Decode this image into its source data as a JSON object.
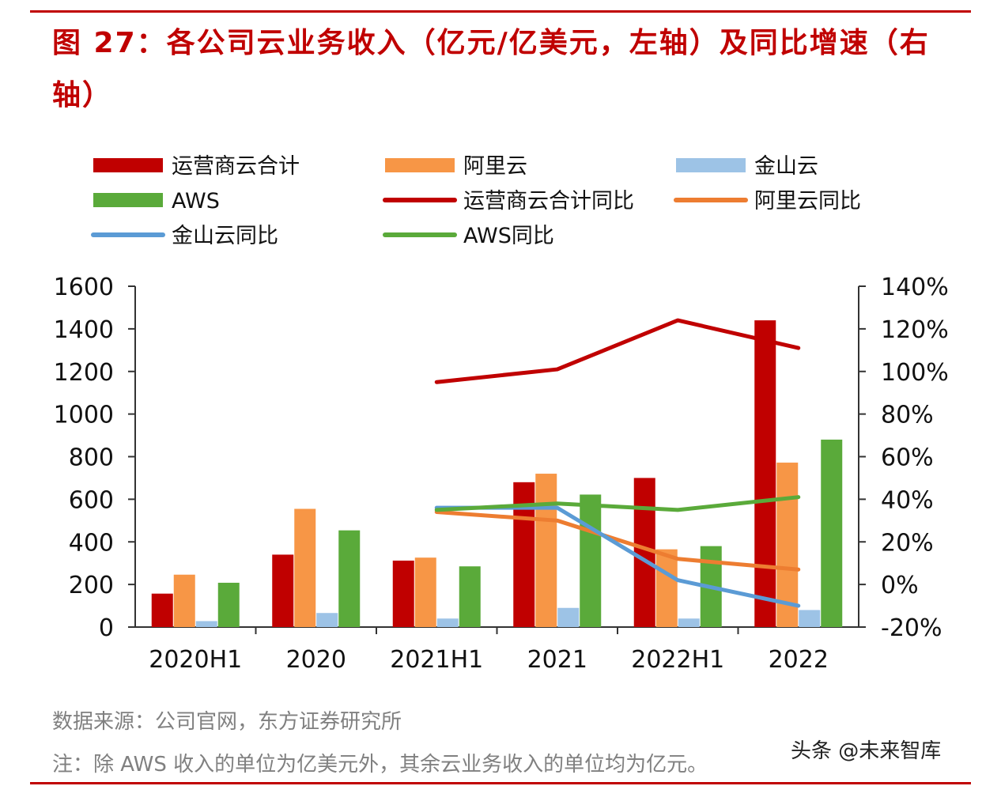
{
  "figure": {
    "title": "图 27：各公司云业务收入（亿元/亿美元，左轴）及同比增速（右轴）"
  },
  "chart_data": {
    "type": "bar",
    "categories": [
      "2020H1",
      "2020",
      "2021H1",
      "2021",
      "2022H1",
      "2022"
    ],
    "left_axis": {
      "ylim": [
        0,
        1600
      ],
      "ticks": [
        "0",
        "200",
        "400",
        "600",
        "800",
        "1000",
        "1200",
        "1400",
        "1600"
      ]
    },
    "right_axis": {
      "ylim": [
        -20,
        140
      ],
      "ticks": [
        "-20%",
        "0%",
        "20%",
        "40%",
        "60%",
        "80%",
        "100%",
        "120%",
        "140%"
      ]
    },
    "bar_series": [
      {
        "name": "运营商云合计",
        "color": "#c00000",
        "values": [
          157,
          340,
          312,
          680,
          700,
          1440
        ]
      },
      {
        "name": "阿里云",
        "color": "#f79646",
        "values": [
          246,
          555,
          326,
          720,
          365,
          772
        ]
      },
      {
        "name": "金山云",
        "color": "#9dc3e6",
        "values": [
          28,
          66,
          40,
          90,
          40,
          80
        ]
      },
      {
        "name": "AWS",
        "color": "#5aaa3a",
        "values": [
          208,
          454,
          285,
          622,
          380,
          880
        ]
      }
    ],
    "line_series": [
      {
        "name": "运营商云合计同比",
        "color": "#c00000",
        "values": [
          null,
          null,
          95,
          101,
          124,
          111
        ]
      },
      {
        "name": "阿里云同比",
        "color": "#ed7d31",
        "values": [
          null,
          null,
          34,
          30,
          12,
          7
        ]
      },
      {
        "name": "金山云同比",
        "color": "#5b9bd5",
        "values": [
          null,
          null,
          36,
          36,
          2,
          -10
        ]
      },
      {
        "name": "AWS同比",
        "color": "#5aaa3a",
        "values": [
          null,
          null,
          35,
          38,
          35,
          41
        ]
      }
    ],
    "legend": [
      {
        "label": "运营商云合计",
        "kind": "bar",
        "color": "#c00000"
      },
      {
        "label": "阿里云",
        "kind": "bar",
        "color": "#f79646"
      },
      {
        "label": "金山云",
        "kind": "bar",
        "color": "#9dc3e6"
      },
      {
        "label": "AWS",
        "kind": "bar",
        "color": "#5aaa3a"
      },
      {
        "label": "运营商云合计同比",
        "kind": "line",
        "color": "#c00000"
      },
      {
        "label": "阿里云同比",
        "kind": "line",
        "color": "#ed7d31"
      },
      {
        "label": "金山云同比",
        "kind": "line",
        "color": "#5b9bd5"
      },
      {
        "label": "AWS同比",
        "kind": "line",
        "color": "#5aaa3a"
      }
    ],
    "legend_position": "top",
    "grid": false
  },
  "notes": {
    "source": "数据来源：公司官网，东方证券研究所",
    "footnote": "注：除 AWS 收入的单位为亿美元外，其余云业务收入的单位均为亿元。"
  },
  "watermark": "头条 @未来智库"
}
